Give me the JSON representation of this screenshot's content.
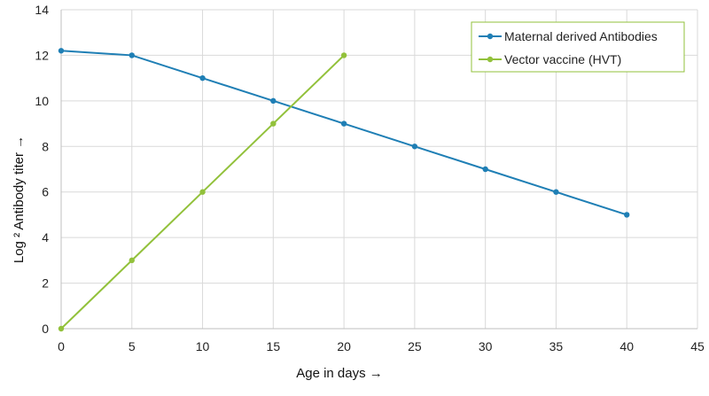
{
  "chart_data": {
    "type": "line",
    "title": "",
    "xlabel": "Age in days →",
    "ylabel": "Log ² Antibody titer →",
    "xlim": [
      0,
      45
    ],
    "ylim": [
      0,
      14
    ],
    "x_ticks": [
      0,
      5,
      10,
      15,
      20,
      25,
      30,
      35,
      40,
      45
    ],
    "y_ticks": [
      0,
      2,
      4,
      6,
      8,
      10,
      12,
      14
    ],
    "grid": "on",
    "legend_position": "top-right",
    "series": [
      {
        "name": "Maternal derived Antibodies",
        "color": "#1f7fb5",
        "x": [
          0,
          5,
          10,
          15,
          20,
          25,
          30,
          35,
          40
        ],
        "y": [
          12.2,
          12,
          11,
          10,
          9,
          8,
          7,
          6,
          5
        ]
      },
      {
        "name": "Vector vaccine (HVT)",
        "color": "#92c13b",
        "x": [
          0,
          5,
          10,
          15,
          20
        ],
        "y": [
          0,
          3,
          6,
          9,
          12
        ]
      }
    ],
    "legend_border_color": "#92c13b"
  }
}
